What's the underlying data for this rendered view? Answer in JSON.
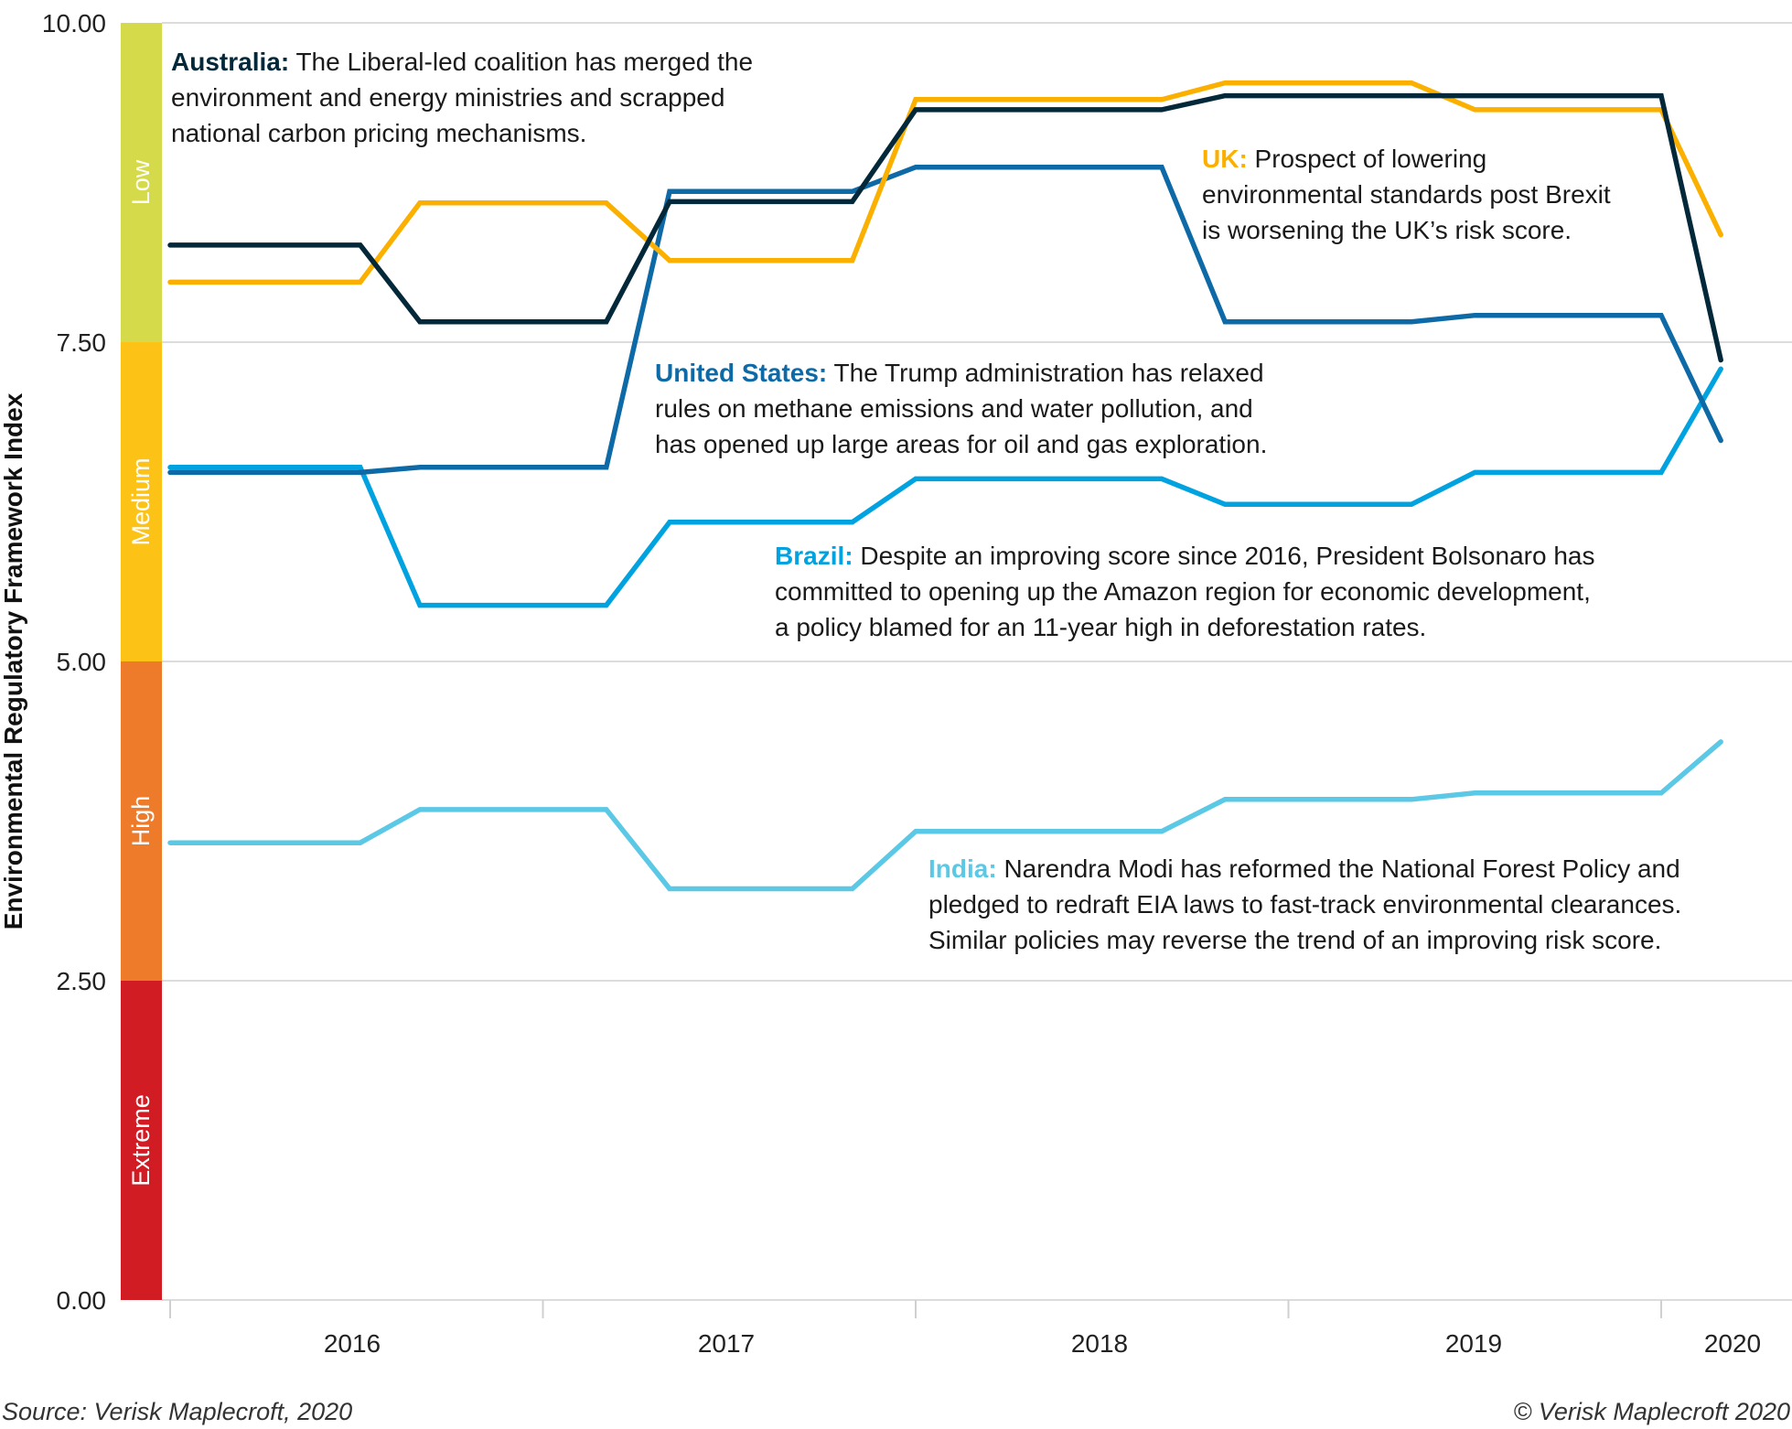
{
  "chart_data": {
    "type": "line",
    "ylabel": "Environmental Regulatory Framework Index",
    "xlabel": "",
    "ylim": [
      0,
      10
    ],
    "xlim": [
      2016,
      2020.35
    ],
    "yticks": [
      "0.00",
      "2.50",
      "5.00",
      "7.50",
      "10.00"
    ],
    "xtick_labels": [
      "2016",
      "2017",
      "2018",
      "2019",
      "2020"
    ],
    "grid": true,
    "risk_bands": [
      {
        "label": "Extreme",
        "from": 0,
        "to": 2.5,
        "color": "#d11c24"
      },
      {
        "label": "High",
        "from": 2.5,
        "to": 5,
        "color": "#ed7b2a"
      },
      {
        "label": "Medium",
        "from": 5,
        "to": 7.5,
        "color": "#fcc316"
      },
      {
        "label": "Low",
        "from": 7.5,
        "to": 10,
        "color": "#d4da4a"
      }
    ],
    "x": [
      2016.0,
      2016.51,
      2016.67,
      2017.17,
      2017.34,
      2017.83,
      2018.0,
      2018.66,
      2018.83,
      2019.33,
      2019.5,
      2020.0,
      2020.16
    ],
    "series": [
      {
        "name": "India",
        "color": "#5bc8e6",
        "values": [
          3.58,
          3.58,
          3.84,
          3.84,
          3.22,
          3.22,
          3.67,
          3.67,
          3.92,
          3.92,
          3.97,
          3.97,
          4.37
        ]
      },
      {
        "name": "Brazil",
        "color": "#00a3e0",
        "values": [
          6.52,
          6.52,
          5.44,
          5.44,
          6.09,
          6.09,
          6.43,
          6.43,
          6.23,
          6.23,
          6.48,
          6.48,
          7.29
        ]
      },
      {
        "name": "United States",
        "color": "#0e6aa6",
        "values": [
          6.48,
          6.48,
          6.52,
          6.52,
          8.68,
          8.68,
          8.87,
          8.87,
          7.66,
          7.66,
          7.71,
          7.71,
          6.73
        ]
      },
      {
        "name": "UK",
        "color": "#fbb000",
        "values": [
          7.97,
          7.97,
          8.59,
          8.59,
          8.14,
          8.14,
          9.4,
          9.4,
          9.53,
          9.53,
          9.32,
          9.32,
          8.34
        ]
      },
      {
        "name": "Australia",
        "color": "#02283a",
        "values": [
          8.26,
          8.26,
          7.66,
          7.66,
          8.6,
          8.6,
          9.32,
          9.32,
          9.43,
          9.43,
          9.43,
          9.43,
          7.36
        ]
      }
    ],
    "annotations": {
      "australia": {
        "label": "Australia:",
        "lines": [
          "The Liberal-led coalition has merged the",
          "environment and energy ministries and scrapped",
          "national carbon pricing mechanisms."
        ]
      },
      "uk": {
        "label": "UK:",
        "lines": [
          "Prospect of lowering",
          "environmental standards post Brexit",
          "is worsening the UK’s risk score."
        ]
      },
      "us": {
        "label": "United States:",
        "lines": [
          "The Trump administration has relaxed",
          "rules on methane emissions and water pollution, and",
          "has opened up large areas for oil and gas exploration."
        ]
      },
      "brazil": {
        "label": "Brazil:",
        "lines": [
          "Despite an improving score since 2016, President Bolsonaro has",
          "committed to opening up the Amazon region for economic development,",
          "a policy blamed for an 11-year high in deforestation rates."
        ]
      },
      "india": {
        "label": "India:",
        "lines": [
          "Narendra Modi has reformed the National Forest Policy and",
          "pledged to redraft EIA laws to fast-track environmental clearances.",
          "Similar policies may reverse the trend of an improving risk score."
        ]
      }
    }
  },
  "footer": {
    "source": "Source: Verisk Maplecroft, 2020",
    "copyright": "© Verisk Maplecroft 2020"
  }
}
